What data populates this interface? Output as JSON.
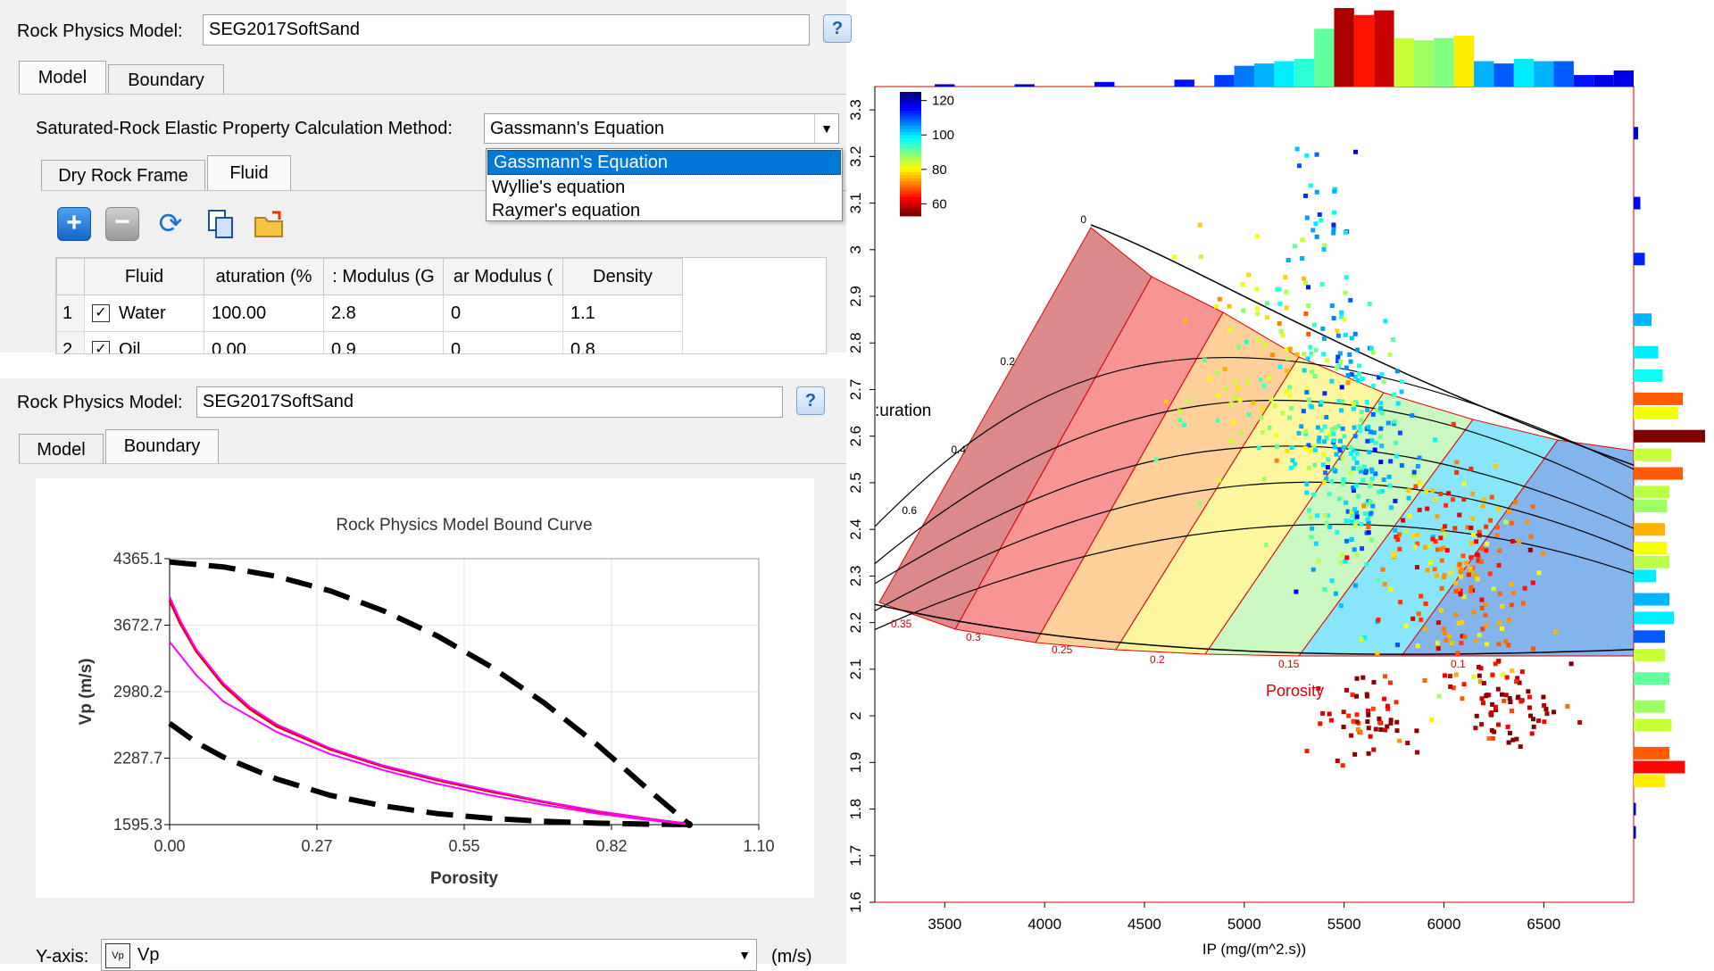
{
  "top_panel": {
    "model_label": "Rock Physics Model:",
    "model_value": "SEG2017SoftSand",
    "tabs": [
      {
        "label": "Model",
        "active": true
      },
      {
        "label": "Boundary",
        "active": false
      }
    ],
    "method_label": "Saturated-Rock Elastic Property Calculation Method:",
    "method_value": "Gassmann's Equation",
    "method_options": [
      "Gassmann's Equation",
      "Wyllie's equation",
      "Raymer's equation"
    ],
    "selected_option_index": 0,
    "sub_tabs": [
      {
        "label": "Dry Rock Frame",
        "active": false
      },
      {
        "label": "Fluid",
        "active": true
      }
    ],
    "toolbar_icons": [
      "add-icon",
      "remove-icon",
      "refresh-icon",
      "copy-icon",
      "open-folder-icon"
    ],
    "table": {
      "columns": [
        "Fluid",
        "aturation (%",
        ": Modulus (G",
        "ar Modulus (",
        "Density"
      ],
      "rows": [
        {
          "num": "1",
          "checked": true,
          "fluid": "Water",
          "saturation": "100.00",
          "bulk": "2.8",
          "shear": "0",
          "density": "1.1"
        },
        {
          "num": "2",
          "checked": true,
          "fluid": "Oil",
          "saturation": "0.00",
          "bulk": "0.9",
          "shear": "0",
          "density": "0.8"
        }
      ]
    }
  },
  "bottom_panel": {
    "model_label": "Rock Physics Model:",
    "model_value": "SEG2017SoftSand",
    "tabs": [
      {
        "label": "Model",
        "active": false
      },
      {
        "label": "Boundary",
        "active": true
      }
    ],
    "yaxis_label": "Y-axis:",
    "yaxis_value": "Vp",
    "yaxis_unit": "(m/s)",
    "yaxis_icon_text": "Vp"
  },
  "bound_chart_text": {
    "title": "Rock Physics Model Bound Curve",
    "xlabel": "Porosity",
    "ylabel": "Vp (m/s)",
    "xticks": [
      "0.00",
      "0.27",
      "0.55",
      "0.82",
      "1.10"
    ],
    "yticks": [
      "4365.1",
      "3672.7",
      "2980.2",
      "2287.7",
      "1595.3"
    ]
  },
  "crossplot_text": {
    "xlabel": "IP (mg/(m^2.s))",
    "xticks": [
      "3500",
      "4000",
      "4500",
      "5000",
      "5500",
      "6000",
      "6500"
    ],
    "yticks": [
      "1.6",
      "1.7",
      "1.8",
      "1.9",
      "2",
      "2.1",
      "2.2",
      "2.3",
      "2.4",
      "2.5",
      "2.6",
      "2.7",
      "2.8",
      "2.9",
      "3",
      "3.1",
      "3.2",
      "3.3"
    ],
    "colorbar_labels": [
      "120",
      "100",
      "80",
      "60"
    ],
    "saturation_label": ":uration",
    "saturation_ticks": [
      "0",
      "0.2",
      "0.4",
      "0.6"
    ],
    "porosity_label": "Porosity",
    "porosity_ticks": [
      "0.35",
      "0.3",
      "0.25",
      "0.2",
      "0.15",
      "0.1"
    ]
  },
  "colors": {
    "accent": "#0078d7",
    "bound_dash": "#000000",
    "curve_red": "#e00000",
    "curve_magenta": "#ff00ff",
    "porosity_text": "#e00000"
  },
  "chart_data": [
    {
      "type": "line",
      "title": "Rock Physics Model Bound Curve",
      "xlabel": "Porosity",
      "ylabel": "Vp (m/s)",
      "xlim": [
        0.0,
        1.1
      ],
      "ylim": [
        1595.3,
        4365.1
      ],
      "grid": true,
      "series": [
        {
          "values": [
            [
              0.0,
              4330
            ],
            [
              0.1,
              4280
            ],
            [
              0.2,
              4180
            ],
            [
              0.3,
              4030
            ],
            [
              0.4,
              3820
            ],
            [
              0.5,
              3560
            ],
            [
              0.6,
              3240
            ],
            [
              0.7,
              2860
            ],
            [
              0.8,
              2420
            ],
            [
              0.9,
              1930
            ],
            [
              0.97,
              1600
            ]
          ]
        },
        {
          "values": [
            [
              0.0,
              2650
            ],
            [
              0.05,
              2450
            ],
            [
              0.1,
              2300
            ],
            [
              0.2,
              2070
            ],
            [
              0.3,
              1900
            ],
            [
              0.4,
              1790
            ],
            [
              0.5,
              1710
            ],
            [
              0.6,
              1660
            ],
            [
              0.7,
              1630
            ],
            [
              0.8,
              1610
            ],
            [
              0.9,
              1600
            ],
            [
              0.97,
              1596
            ]
          ]
        },
        {
          "values": [
            [
              0.0,
              3930
            ],
            [
              0.02,
              3690
            ],
            [
              0.05,
              3400
            ],
            [
              0.1,
              3050
            ],
            [
              0.15,
              2800
            ],
            [
              0.2,
              2620
            ],
            [
              0.3,
              2380
            ],
            [
              0.4,
              2200
            ],
            [
              0.5,
              2060
            ],
            [
              0.6,
              1940
            ],
            [
              0.7,
              1830
            ],
            [
              0.8,
              1730
            ],
            [
              0.9,
              1650
            ],
            [
              0.97,
              1600
            ]
          ]
        },
        {
          "values": [
            [
              0.0,
              3970
            ],
            [
              0.02,
              3720
            ],
            [
              0.05,
              3420
            ],
            [
              0.1,
              3070
            ],
            [
              0.15,
              2820
            ],
            [
              0.2,
              2640
            ],
            [
              0.3,
              2390
            ],
            [
              0.4,
              2210
            ],
            [
              0.5,
              2070
            ],
            [
              0.6,
              1950
            ],
            [
              0.7,
              1835
            ],
            [
              0.8,
              1735
            ],
            [
              0.9,
              1652
            ],
            [
              0.97,
              1601
            ]
          ]
        },
        {
          "values": [
            [
              0.0,
              3500
            ],
            [
              0.05,
              3150
            ],
            [
              0.1,
              2880
            ],
            [
              0.2,
              2560
            ],
            [
              0.3,
              2330
            ],
            [
              0.4,
              2160
            ],
            [
              0.5,
              2020
            ],
            [
              0.6,
              1900
            ],
            [
              0.7,
              1800
            ],
            [
              0.8,
              1710
            ],
            [
              0.9,
              1640
            ],
            [
              0.97,
              1600
            ]
          ]
        }
      ]
    },
    {
      "type": "scatter",
      "xlabel": "IP (mg/(m^2.s))",
      "xlim": [
        3150,
        6950
      ],
      "ylim": [
        1.6,
        3.35
      ],
      "template_overlay": true,
      "color_scale": {
        "min": 55,
        "max": 125,
        "colormap": "jet"
      },
      "clusters": [
        {
          "cx": 5550,
          "cy": 2.55,
          "sx": 200,
          "sy": 0.22,
          "n": 260,
          "value": 100
        },
        {
          "cx": 6050,
          "cy": 2.3,
          "sx": 280,
          "sy": 0.18,
          "n": 200,
          "value": 72
        },
        {
          "cx": 5150,
          "cy": 2.75,
          "sx": 350,
          "sy": 0.2,
          "n": 110,
          "value": 85
        },
        {
          "cx": 5400,
          "cy": 3.1,
          "sx": 130,
          "sy": 0.12,
          "n": 25,
          "value": 105
        },
        {
          "cx": 5600,
          "cy": 1.99,
          "sx": 180,
          "sy": 0.06,
          "n": 55,
          "value": 58
        },
        {
          "cx": 6350,
          "cy": 2.03,
          "sx": 200,
          "sy": 0.07,
          "n": 65,
          "value": 58
        }
      ],
      "histogram_top": [
        {
          "bin": 3500,
          "count": 1,
          "value": 120
        },
        {
          "bin": 3900,
          "count": 1,
          "value": 120
        },
        {
          "bin": 4300,
          "count": 2,
          "value": 118
        },
        {
          "bin": 4700,
          "count": 3,
          "value": 115
        },
        {
          "bin": 4900,
          "count": 5,
          "value": 112
        },
        {
          "bin": 5000,
          "count": 9,
          "value": 108
        },
        {
          "bin": 5100,
          "count": 10,
          "value": 104
        },
        {
          "bin": 5200,
          "count": 11,
          "value": 100
        },
        {
          "bin": 5300,
          "count": 12,
          "value": 96
        },
        {
          "bin": 5400,
          "count": 25,
          "value": 92
        },
        {
          "bin": 5500,
          "count": 34,
          "value": 58
        },
        {
          "bin": 5600,
          "count": 31,
          "value": 65
        },
        {
          "bin": 5700,
          "count": 33,
          "value": 60
        },
        {
          "bin": 5800,
          "count": 21,
          "value": 85
        },
        {
          "bin": 5900,
          "count": 20,
          "value": 88
        },
        {
          "bin": 6000,
          "count": 21,
          "value": 90
        },
        {
          "bin": 6100,
          "count": 22,
          "value": 80
        },
        {
          "bin": 6200,
          "count": 11,
          "value": 104
        },
        {
          "bin": 6300,
          "count": 10,
          "value": 110
        },
        {
          "bin": 6400,
          "count": 12,
          "value": 100
        },
        {
          "bin": 6500,
          "count": 11,
          "value": 104
        },
        {
          "bin": 6600,
          "count": 11,
          "value": 110
        },
        {
          "bin": 6700,
          "count": 5,
          "value": 115
        },
        {
          "bin": 6800,
          "count": 5,
          "value": 118
        },
        {
          "bin": 6900,
          "count": 7,
          "value": 118
        }
      ],
      "histogram_right": [
        {
          "bin": 3.25,
          "count": 2,
          "value": 118
        },
        {
          "bin": 3.1,
          "count": 3,
          "value": 116
        },
        {
          "bin": 2.98,
          "count": 5,
          "value": 114
        },
        {
          "bin": 2.85,
          "count": 8,
          "value": 104
        },
        {
          "bin": 2.78,
          "count": 11,
          "value": 100
        },
        {
          "bin": 2.73,
          "count": 13,
          "value": 98
        },
        {
          "bin": 2.68,
          "count": 22,
          "value": 70
        },
        {
          "bin": 2.65,
          "count": 20,
          "value": 82
        },
        {
          "bin": 2.6,
          "count": 32,
          "value": 55
        },
        {
          "bin": 2.56,
          "count": 17,
          "value": 85
        },
        {
          "bin": 2.52,
          "count": 22,
          "value": 70
        },
        {
          "bin": 2.48,
          "count": 16,
          "value": 86
        },
        {
          "bin": 2.45,
          "count": 15,
          "value": 88
        },
        {
          "bin": 2.4,
          "count": 14,
          "value": 76
        },
        {
          "bin": 2.36,
          "count": 15,
          "value": 82
        },
        {
          "bin": 2.33,
          "count": 16,
          "value": 86
        },
        {
          "bin": 2.3,
          "count": 10,
          "value": 100
        },
        {
          "bin": 2.25,
          "count": 16,
          "value": 104
        },
        {
          "bin": 2.21,
          "count": 18,
          "value": 100
        },
        {
          "bin": 2.17,
          "count": 14,
          "value": 110
        },
        {
          "bin": 2.13,
          "count": 14,
          "value": 85
        },
        {
          "bin": 2.08,
          "count": 16,
          "value": 92
        },
        {
          "bin": 2.02,
          "count": 14,
          "value": 88
        },
        {
          "bin": 1.98,
          "count": 17,
          "value": 85
        },
        {
          "bin": 1.92,
          "count": 16,
          "value": 70
        },
        {
          "bin": 1.89,
          "count": 23,
          "value": 64
        },
        {
          "bin": 1.86,
          "count": 14,
          "value": 80
        },
        {
          "bin": 1.8,
          "count": 1,
          "value": 120
        },
        {
          "bin": 1.75,
          "count": 1,
          "value": 120
        }
      ]
    }
  ]
}
